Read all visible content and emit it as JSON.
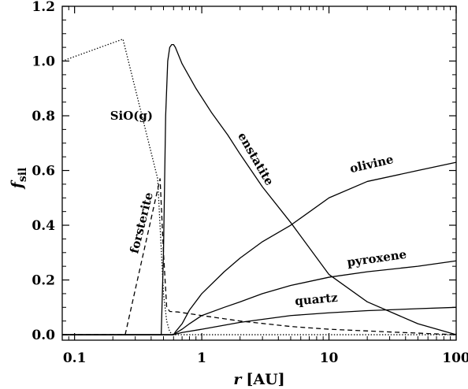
{
  "chart_data": {
    "type": "line",
    "xlabel": {
      "var": "r",
      "unit": "[AU]"
    },
    "ylabel": {
      "var": "f",
      "sub": "sil"
    },
    "xscale": "log",
    "xlim": [
      0.08,
      100
    ],
    "ylim": [
      -0.02,
      1.2
    ],
    "x_ticks": [
      {
        "v": 0.1,
        "label": "0.1"
      },
      {
        "v": 1,
        "label": "1"
      },
      {
        "v": 10,
        "label": "10"
      },
      {
        "v": 100,
        "label": "100"
      }
    ],
    "y_ticks": [
      {
        "v": 0.0,
        "label": "0.0"
      },
      {
        "v": 0.2,
        "label": "0.2"
      },
      {
        "v": 0.4,
        "label": "0.4"
      },
      {
        "v": 0.6,
        "label": "0.6"
      },
      {
        "v": 0.8,
        "label": "0.8"
      },
      {
        "v": 1.0,
        "label": "1.0"
      },
      {
        "v": 1.2,
        "label": "1.2"
      }
    ],
    "grid": false,
    "series": [
      {
        "name": "SiO(g)",
        "style": "dotted",
        "x": [
          0.08,
          0.24,
          0.45,
          0.5,
          0.53,
          0.56,
          0.6,
          1,
          10,
          100
        ],
        "y": [
          1.0,
          1.08,
          0.57,
          0.15,
          0.05,
          0.01,
          0.0,
          0.0,
          0.0,
          0.0
        ]
      },
      {
        "name": "forsterite",
        "style": "dashed",
        "x": [
          0.08,
          0.22,
          0.25,
          0.47,
          0.5,
          0.53,
          0.56,
          0.65,
          1,
          2,
          5,
          10,
          30,
          100
        ],
        "y": [
          0.0,
          0.0,
          0.0,
          0.57,
          0.3,
          0.1,
          0.085,
          0.083,
          0.07,
          0.05,
          0.03,
          0.02,
          0.01,
          0.0
        ]
      },
      {
        "name": "enstatite",
        "style": "solid",
        "x": [
          0.08,
          0.3,
          0.48,
          0.5,
          0.52,
          0.54,
          0.56,
          0.58,
          0.6,
          0.62,
          0.7,
          0.9,
          1.2,
          1.6,
          2,
          3,
          5,
          10,
          20,
          50,
          100
        ],
        "y": [
          0.0,
          0.0,
          0.0,
          0.3,
          0.8,
          1.0,
          1.05,
          1.06,
          1.06,
          1.05,
          0.99,
          0.9,
          0.81,
          0.73,
          0.66,
          0.54,
          0.41,
          0.22,
          0.12,
          0.04,
          0.0
        ]
      },
      {
        "name": "olivine",
        "style": "solid",
        "x": [
          0.08,
          0.6,
          0.62,
          0.7,
          0.8,
          1,
          1.5,
          2,
          3,
          5,
          10,
          20,
          50,
          100
        ],
        "y": [
          0.0,
          0.0,
          0.01,
          0.04,
          0.09,
          0.15,
          0.23,
          0.28,
          0.34,
          0.4,
          0.5,
          0.56,
          0.6,
          0.63
        ]
      },
      {
        "name": "pyroxene",
        "style": "solid",
        "x": [
          0.08,
          0.6,
          0.62,
          0.7,
          0.8,
          1,
          1.5,
          2,
          3,
          5,
          10,
          20,
          50,
          100
        ],
        "y": [
          0.0,
          0.0,
          0.005,
          0.02,
          0.04,
          0.07,
          0.1,
          0.12,
          0.15,
          0.18,
          0.21,
          0.23,
          0.25,
          0.27
        ]
      },
      {
        "name": "quartz",
        "style": "solid",
        "x": [
          0.08,
          0.6,
          0.62,
          0.7,
          1,
          2,
          5,
          10,
          20,
          50,
          100
        ],
        "y": [
          0.0,
          0.0,
          0.002,
          0.008,
          0.02,
          0.045,
          0.07,
          0.08,
          0.088,
          0.095,
          0.1
        ]
      }
    ],
    "annotations": [
      {
        "text": "SiO(g)",
        "x": 0.28,
        "y": 0.785,
        "rotate": 0
      },
      {
        "text": "forsterite",
        "x": 0.36,
        "y": 0.405,
        "rotate": -76
      },
      {
        "text": "enstatite",
        "x": 2.5,
        "y": 0.635,
        "rotate": 60
      },
      {
        "text": "olivine",
        "x": 22,
        "y": 0.61,
        "rotate": -13
      },
      {
        "text": "pyroxene",
        "x": 24,
        "y": 0.265,
        "rotate": -8
      },
      {
        "text": "quartz",
        "x": 8,
        "y": 0.115,
        "rotate": -5
      }
    ]
  }
}
